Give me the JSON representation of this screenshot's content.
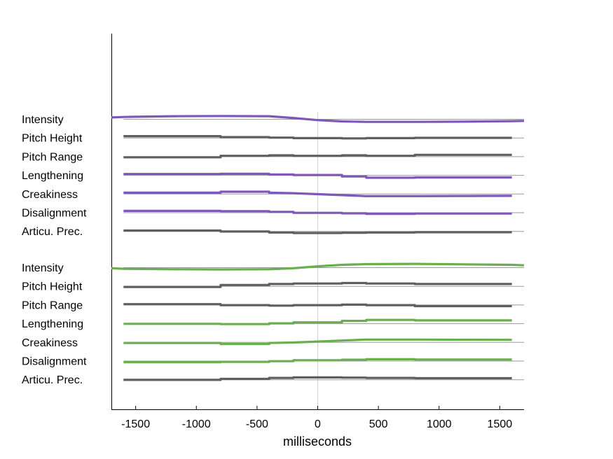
{
  "chart_data": {
    "type": "line",
    "xlabel": "milliseconds",
    "ylabel": "",
    "title": "",
    "xlim": [
      -1700,
      1700
    ],
    "xticks": [
      -1500,
      -1000,
      -500,
      0,
      500,
      1000,
      1500
    ],
    "grid": false,
    "zero_line": true,
    "colors": {
      "purple": "#7e57b8",
      "gray": "#5f5f5f",
      "green": "#6aaf4f",
      "baseline": "#9a9a9a",
      "zero_line": "#d0d0d0"
    },
    "groups": [
      {
        "series": [
          {
            "name": "Intensity",
            "color": "purple",
            "x": [
              -1700,
              -1600,
              -1500,
              -1200,
              -800,
              -400,
              -200,
              0,
              200,
              400,
              800,
              1200,
              1600,
              1700
            ],
            "y": [
              0.15,
              0.2,
              0.22,
              0.28,
              0.3,
              0.28,
              0.1,
              -0.12,
              -0.25,
              -0.3,
              -0.3,
              -0.28,
              -0.22,
              -0.2
            ]
          },
          {
            "name": "Pitch Height",
            "color": "gray",
            "x": [
              -1600,
              -800,
              -800,
              -400,
              -400,
              -200,
              -200,
              200,
              200,
              400,
              400,
              800,
              800,
              1600
            ],
            "y": [
              0.15,
              0.15,
              0.05,
              0.05,
              0.0,
              0.0,
              -0.05,
              -0.05,
              -0.08,
              -0.08,
              -0.05,
              -0.05,
              -0.02,
              -0.02
            ]
          },
          {
            "name": "Pitch Range",
            "color": "gray",
            "x": [
              -1600,
              -800,
              -800,
              -400,
              -400,
              -200,
              -200,
              200,
              200,
              400,
              400,
              800,
              800,
              1600
            ],
            "y": [
              -0.1,
              -0.1,
              0.05,
              0.05,
              0.1,
              0.1,
              0.05,
              0.05,
              0.1,
              0.1,
              0.05,
              0.05,
              0.15,
              0.15
            ]
          },
          {
            "name": "Lengthening",
            "color": "purple",
            "x": [
              -1600,
              -800,
              -800,
              -400,
              -400,
              -200,
              -200,
              200,
              200,
              400,
              400,
              800,
              800,
              1600
            ],
            "y": [
              0.1,
              0.1,
              0.12,
              0.12,
              0.05,
              0.05,
              0.0,
              0.0,
              -0.15,
              -0.15,
              -0.28,
              -0.28,
              -0.25,
              -0.25
            ]
          },
          {
            "name": "Creakiness",
            "color": "purple",
            "x": [
              -1600,
              -800,
              -800,
              -400,
              -400,
              -200,
              0,
              200,
              400,
              800,
              1600
            ],
            "y": [
              0.1,
              0.1,
              0.2,
              0.2,
              0.1,
              0.05,
              -0.05,
              -0.15,
              -0.25,
              -0.25,
              -0.22
            ]
          },
          {
            "name": "Disalignment",
            "color": "purple",
            "x": [
              -1600,
              -800,
              -800,
              -400,
              -400,
              -200,
              -200,
              200,
              200,
              400,
              400,
              800,
              800,
              1600
            ],
            "y": [
              0.15,
              0.15,
              0.12,
              0.12,
              0.05,
              0.05,
              -0.05,
              -0.05,
              -0.1,
              -0.1,
              -0.15,
              -0.15,
              -0.12,
              -0.12
            ]
          },
          {
            "name": "Articu. Prec.",
            "color": "gray",
            "x": [
              -1600,
              -800,
              -800,
              -400,
              -400,
              -200,
              -200,
              200,
              200,
              400,
              400,
              800,
              800,
              1600
            ],
            "y": [
              0.05,
              0.05,
              -0.05,
              -0.05,
              -0.15,
              -0.15,
              -0.2,
              -0.2,
              -0.18,
              -0.18,
              -0.15,
              -0.15,
              -0.12,
              -0.12
            ]
          }
        ]
      },
      {
        "series": [
          {
            "name": "Intensity",
            "color": "green",
            "x": [
              -1700,
              -1600,
              -1200,
              -800,
              -400,
              -200,
              0,
              200,
              400,
              800,
              1200,
              1600,
              1700
            ],
            "y": [
              -0.1,
              -0.15,
              -0.2,
              -0.22,
              -0.2,
              -0.1,
              0.1,
              0.25,
              0.32,
              0.35,
              0.3,
              0.25,
              0.2
            ]
          },
          {
            "name": "Pitch Height",
            "color": "gray",
            "x": [
              -1600,
              -800,
              -800,
              -400,
              -400,
              -200,
              -200,
              200,
              200,
              400,
              400,
              800,
              800,
              1600
            ],
            "y": [
              -0.1,
              -0.1,
              0.1,
              0.1,
              0.2,
              0.2,
              0.25,
              0.25,
              0.3,
              0.3,
              0.25,
              0.25,
              0.2,
              0.2
            ]
          },
          {
            "name": "Pitch Range",
            "color": "gray",
            "x": [
              -1600,
              -800,
              -800,
              -400,
              -400,
              -200,
              -200,
              200,
              200,
              400,
              400,
              800,
              800,
              1600
            ],
            "y": [
              0.05,
              0.05,
              -0.05,
              -0.05,
              -0.1,
              -0.1,
              -0.05,
              -0.05,
              0.0,
              0.0,
              -0.05,
              -0.05,
              -0.15,
              -0.15
            ]
          },
          {
            "name": "Lengthening",
            "color": "green",
            "x": [
              -1600,
              -800,
              -800,
              -400,
              -400,
              -200,
              -200,
              200,
              200,
              400,
              400,
              800,
              800,
              1600
            ],
            "y": [
              -0.05,
              -0.05,
              -0.08,
              -0.08,
              0.0,
              0.0,
              0.1,
              0.1,
              0.25,
              0.25,
              0.35,
              0.35,
              0.3,
              0.3
            ]
          },
          {
            "name": "Creakiness",
            "color": "green",
            "x": [
              -1600,
              -800,
              -800,
              -400,
              -400,
              -200,
              0,
              200,
              400,
              800,
              1600
            ],
            "y": [
              -0.1,
              -0.1,
              -0.2,
              -0.2,
              -0.1,
              -0.05,
              0.05,
              0.15,
              0.25,
              0.25,
              0.22
            ]
          },
          {
            "name": "Disalignment",
            "color": "green",
            "x": [
              -1600,
              -800,
              -800,
              -400,
              -400,
              -200,
              -200,
              200,
              200,
              400,
              400,
              800,
              800,
              1600
            ],
            "y": [
              -0.15,
              -0.15,
              -0.12,
              -0.12,
              -0.05,
              -0.05,
              0.05,
              0.05,
              0.1,
              0.1,
              0.15,
              0.15,
              0.12,
              0.12
            ]
          },
          {
            "name": "Articu. Prec.",
            "color": "gray",
            "x": [
              -1600,
              -800,
              -800,
              -400,
              -400,
              -200,
              -200,
              200,
              200,
              400,
              400,
              800,
              800,
              1600
            ],
            "y": [
              -0.05,
              -0.05,
              0.05,
              0.05,
              0.15,
              0.15,
              0.2,
              0.2,
              0.18,
              0.18,
              0.15,
              0.15,
              0.12,
              0.12
            ]
          }
        ]
      }
    ]
  }
}
